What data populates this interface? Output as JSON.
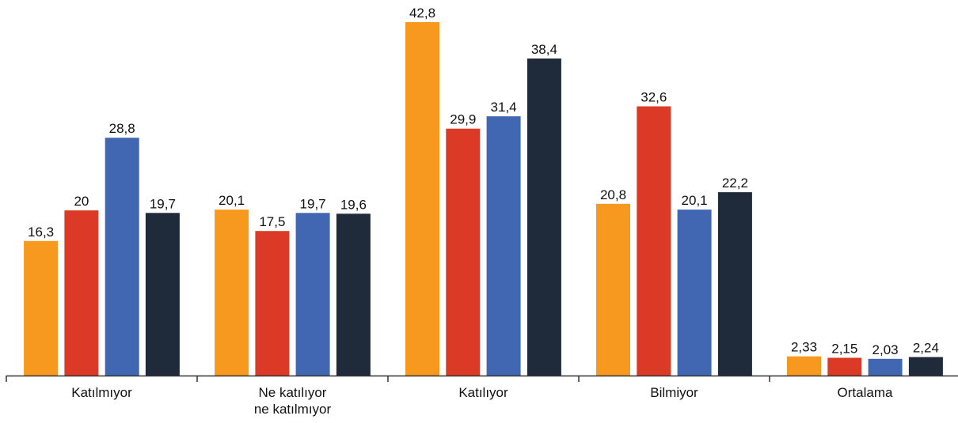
{
  "chart_data": {
    "type": "bar",
    "categories": [
      [
        "Katılmıyor"
      ],
      [
        "Ne katılıyor",
        "ne katılmıyor"
      ],
      [
        "Katılıyor"
      ],
      [
        "Bilmiyor"
      ],
      [
        "Ortalama"
      ]
    ],
    "series": [
      {
        "color": "#F7991F",
        "values": [
          16.3,
          20.1,
          42.8,
          20.8,
          2.33
        ],
        "labels": [
          "16,3",
          "20,1",
          "42,8",
          "20,8",
          "2,33"
        ]
      },
      {
        "color": "#DB3B26",
        "values": [
          20,
          17.5,
          29.9,
          32.6,
          2.15
        ],
        "labels": [
          "20",
          "17,5",
          "29,9",
          "32,6",
          "2,15"
        ]
      },
      {
        "color": "#4267B2",
        "values": [
          28.8,
          19.7,
          31.4,
          20.1,
          2.03
        ],
        "labels": [
          "28,8",
          "19,7",
          "31,4",
          "20,1",
          "2,03"
        ]
      },
      {
        "color": "#1F2B3A",
        "values": [
          19.7,
          19.6,
          38.4,
          22.2,
          2.24
        ],
        "labels": [
          "19,7",
          "19,6",
          "38,4",
          "22,2",
          "2,24"
        ]
      }
    ],
    "ylim": [
      0,
      42.8
    ],
    "grid": false,
    "legend": "none"
  }
}
